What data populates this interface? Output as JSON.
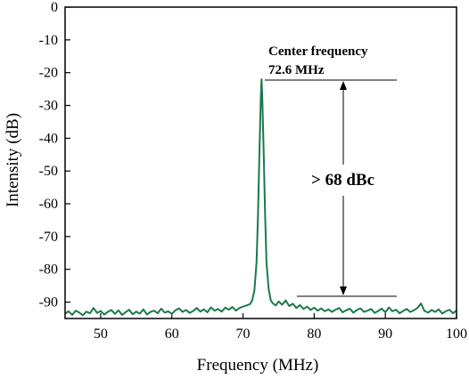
{
  "chart_data": {
    "type": "line",
    "xlabel": "Frequency (MHz)",
    "ylabel": "Intensity (dB)",
    "xlim": [
      45,
      100
    ],
    "ylim": [
      -95,
      0
    ],
    "x_ticks": [
      50,
      60,
      70,
      80,
      90,
      100
    ],
    "y_ticks": [
      0,
      -10,
      -20,
      -30,
      -40,
      -50,
      -60,
      -70,
      -80,
      -90
    ],
    "grid": false,
    "line_color": "#1a7a4c",
    "series": [
      {
        "x": [
          45.0,
          45.5,
          46.0,
          46.5,
          47.0,
          47.5,
          48.0,
          48.5,
          49.0,
          49.5,
          50.0,
          50.5,
          51.0,
          51.5,
          52.0,
          52.5,
          53.0,
          53.5,
          54.0,
          54.5,
          55.0,
          55.5,
          56.0,
          56.5,
          57.0,
          57.5,
          58.0,
          58.5,
          59.0,
          59.5,
          60.0,
          60.5,
          61.0,
          61.5,
          62.0,
          62.5,
          63.0,
          63.5,
          64.0,
          64.5,
          65.0,
          65.5,
          66.0,
          66.5,
          67.0,
          67.5,
          68.0,
          68.5,
          69.0,
          69.5,
          70.0,
          70.5,
          71.0,
          71.3,
          71.6,
          71.9,
          72.1,
          72.3,
          72.5,
          72.6,
          72.7,
          72.9,
          73.1,
          73.3,
          73.6,
          73.9,
          74.2,
          74.6,
          75.0,
          75.5,
          76.0,
          76.5,
          77.0,
          77.5,
          78.0,
          78.5,
          79.0,
          79.5,
          80.0,
          80.5,
          81.0,
          81.5,
          82.0,
          82.5,
          83.0,
          83.5,
          84.0,
          84.5,
          85.0,
          85.5,
          86.0,
          86.5,
          87.0,
          87.5,
          88.0,
          88.5,
          89.0,
          89.5,
          90.0,
          90.5,
          91.0,
          91.5,
          92.0,
          92.5,
          93.0,
          93.5,
          94.0,
          94.5,
          95.0,
          95.5,
          96.0,
          96.5,
          97.0,
          97.5,
          98.0,
          98.5,
          99.0,
          99.5,
          100.0
        ],
        "values": [
          -93.5,
          -92.8,
          -93.9,
          -92.6,
          -93.2,
          -94.0,
          -92.9,
          -93.4,
          -91.8,
          -93.3,
          -92.7,
          -93.8,
          -93.0,
          -92.4,
          -93.6,
          -92.5,
          -93.9,
          -93.1,
          -92.3,
          -93.7,
          -92.9,
          -93.5,
          -92.2,
          -93.8,
          -93.0,
          -92.6,
          -93.4,
          -92.0,
          -93.2,
          -92.8,
          -93.6,
          -92.5,
          -91.9,
          -93.0,
          -92.4,
          -93.3,
          -92.7,
          -91.8,
          -92.9,
          -92.2,
          -93.1,
          -91.6,
          -92.6,
          -92.1,
          -92.9,
          -91.7,
          -92.3,
          -91.5,
          -92.6,
          -91.8,
          -91.4,
          -91.0,
          -90.6,
          -89.4,
          -86.5,
          -78.0,
          -64.0,
          -45.0,
          -28.0,
          -22.0,
          -27.0,
          -44.0,
          -63.0,
          -78.0,
          -86.0,
          -89.5,
          -90.4,
          -91.0,
          -89.8,
          -90.8,
          -89.5,
          -91.2,
          -90.5,
          -91.8,
          -90.9,
          -92.1,
          -91.4,
          -92.4,
          -91.7,
          -92.6,
          -91.9,
          -92.8,
          -92.2,
          -93.0,
          -92.3,
          -91.8,
          -93.1,
          -92.5,
          -92.0,
          -93.2,
          -92.4,
          -91.9,
          -93.0,
          -92.6,
          -92.1,
          -93.3,
          -92.7,
          -92.0,
          -93.1,
          -91.6,
          -92.8,
          -92.3,
          -93.4,
          -92.7,
          -92.1,
          -93.0,
          -92.5,
          -91.8,
          -90.4,
          -92.7,
          -93.2,
          -92.4,
          -93.0,
          -92.2,
          -93.5,
          -92.8,
          -92.3,
          -93.4,
          -92.6
        ]
      }
    ],
    "annotations": {
      "center_label": "Center frequency",
      "center_value": "72.6 MHz",
      "dynamic_range": "> 68 dBc"
    }
  }
}
